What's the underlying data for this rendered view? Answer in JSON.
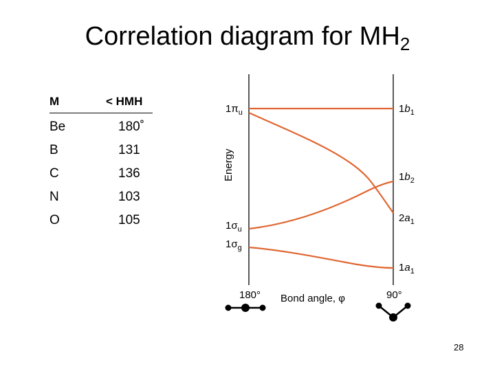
{
  "title": {
    "main": "Correlation diagram for MH",
    "subscript": "2"
  },
  "table": {
    "headers": {
      "metal": "M",
      "angle": "< HMH"
    },
    "rows": [
      {
        "metal": "Be",
        "angle": "180˚"
      },
      {
        "metal": "B",
        "angle": "131"
      },
      {
        "metal": "C",
        "angle": "136"
      },
      {
        "metal": "N",
        "angle": "103"
      },
      {
        "metal": "O",
        "angle": "105"
      }
    ]
  },
  "diagram": {
    "y_axis_label": "Energy",
    "x_axis_label": "Bond angle, φ",
    "left_angle": "180°",
    "right_angle": "90°",
    "left_labels": [
      {
        "pre": "1π",
        "sub": "u"
      },
      {
        "pre": "1σ",
        "sub": "u"
      },
      {
        "pre": "1σ",
        "sub": "g"
      }
    ],
    "right_labels": [
      {
        "pre": "1",
        "it": "b",
        "sub": "1"
      },
      {
        "pre": "1",
        "it": "b",
        "sub": "2"
      },
      {
        "pre": "2",
        "it": "a",
        "sub": "1"
      },
      {
        "pre": "1",
        "it": "a",
        "sub": "1"
      }
    ],
    "curve_color": "#e06530"
  },
  "page_number": "28"
}
